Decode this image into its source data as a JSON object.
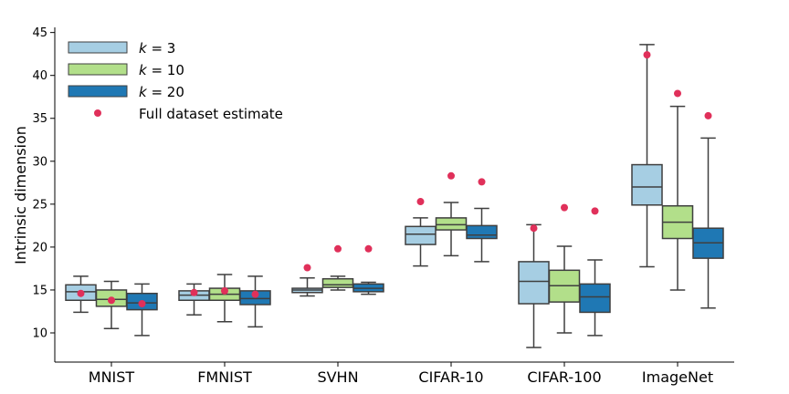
{
  "chart_data": {
    "type": "box",
    "title": "",
    "xlabel": "",
    "ylabel": "Intrinsic dimension",
    "ylim": [
      6.6,
      45.6
    ],
    "yticks": [
      10,
      15,
      20,
      25,
      30,
      35,
      40,
      45
    ],
    "grid": false,
    "legend_position": "top-left",
    "categories": [
      "MNIST",
      "FMNIST",
      "SVHN",
      "CIFAR-10",
      "CIFAR-100",
      "ImageNet"
    ],
    "series": [
      {
        "name": "k = 3",
        "color": "#a6cee3",
        "boxes": [
          {
            "whislo": 12.4,
            "q1": 13.8,
            "med": 14.8,
            "q3": 15.6,
            "whishi": 16.6
          },
          {
            "whislo": 12.1,
            "q1": 13.8,
            "med": 14.4,
            "q3": 14.9,
            "whishi": 15.7
          },
          {
            "whislo": 14.3,
            "q1": 14.7,
            "med": 15.0,
            "q3": 15.2,
            "whishi": 16.4
          },
          {
            "whislo": 17.8,
            "q1": 20.3,
            "med": 21.5,
            "q3": 22.4,
            "whishi": 23.4
          },
          {
            "whislo": 8.3,
            "q1": 13.4,
            "med": 16.0,
            "q3": 18.3,
            "whishi": 22.6
          },
          {
            "whislo": 17.7,
            "q1": 24.9,
            "med": 27.0,
            "q3": 29.6,
            "whishi": 43.6
          }
        ]
      },
      {
        "name": "k = 10",
        "color": "#b2df8a",
        "boxes": [
          {
            "whislo": 10.5,
            "q1": 13.1,
            "med": 13.9,
            "q3": 15.0,
            "whishi": 16.0
          },
          {
            "whislo": 11.3,
            "q1": 13.8,
            "med": 14.5,
            "q3": 15.2,
            "whishi": 16.8
          },
          {
            "whislo": 15.0,
            "q1": 15.3,
            "med": 15.6,
            "q3": 16.3,
            "whishi": 16.6
          },
          {
            "whislo": 19.0,
            "q1": 22.0,
            "med": 22.6,
            "q3": 23.4,
            "whishi": 25.2
          },
          {
            "whislo": 10.0,
            "q1": 13.6,
            "med": 15.5,
            "q3": 17.3,
            "whishi": 20.1
          },
          {
            "whislo": 15.0,
            "q1": 21.0,
            "med": 22.9,
            "q3": 24.8,
            "whishi": 36.4
          }
        ]
      },
      {
        "name": "k = 20",
        "color": "#1f78b4",
        "boxes": [
          {
            "whislo": 9.7,
            "q1": 12.7,
            "med": 13.5,
            "q3": 14.6,
            "whishi": 15.7
          },
          {
            "whislo": 10.7,
            "q1": 13.3,
            "med": 14.0,
            "q3": 14.9,
            "whishi": 16.6
          },
          {
            "whislo": 14.5,
            "q1": 14.8,
            "med": 15.2,
            "q3": 15.7,
            "whishi": 15.9
          },
          {
            "whislo": 18.3,
            "q1": 21.0,
            "med": 21.4,
            "q3": 22.5,
            "whishi": 24.5
          },
          {
            "whislo": 9.7,
            "q1": 12.4,
            "med": 14.2,
            "q3": 15.7,
            "whishi": 18.5
          },
          {
            "whislo": 12.9,
            "q1": 18.7,
            "med": 20.5,
            "q3": 22.2,
            "whishi": 32.7
          }
        ]
      }
    ],
    "full_dataset_estimate": {
      "name": "Full dataset estimate",
      "color": "#e0305a",
      "points": [
        [
          14.6,
          13.8,
          13.4
        ],
        [
          14.7,
          14.9,
          14.5
        ],
        [
          17.6,
          19.8,
          19.8
        ],
        [
          25.3,
          28.3,
          27.6
        ],
        [
          22.2,
          24.6,
          24.2
        ],
        [
          42.4,
          37.9,
          35.3
        ]
      ]
    }
  }
}
